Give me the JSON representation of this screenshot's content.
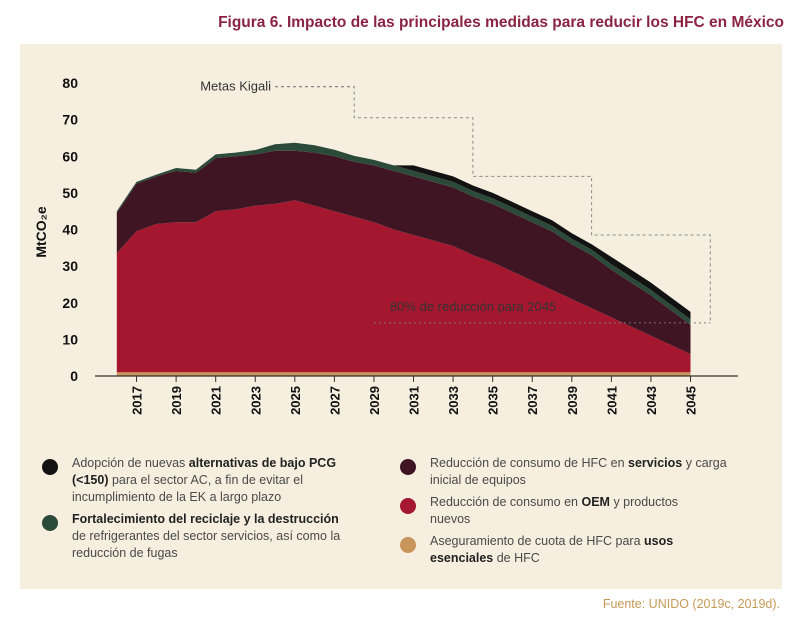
{
  "title": "Figura 6. Impacto de las principales medidas para reducir los HFC en México",
  "source": "Fuente: UNIDO (2019c, 2019d).",
  "legend": {
    "item1": {
      "pre": "Adopción de nuevas ",
      "bold": "alternativas de bajo PCG (<150)",
      "post": " para el sector AC, a fin de evitar el incumplimiento de la EK a largo plazo",
      "color": "#121212"
    },
    "item2": {
      "pre": "",
      "bold": "Fortalecimiento del reciclaje y la destrucción",
      "post": " de refrigerantes del sector servicios, así como la reducción de fugas",
      "color": "#2b4a3a"
    },
    "item3": {
      "pre": "Reducción de consumo de HFC en ",
      "bold": "servicios",
      "post": " y carga inicial de equipos",
      "color": "#3f1523"
    },
    "item4": {
      "pre": "Reducción de consumo en ",
      "bold": "OEM",
      "post": " y productos nuevos",
      "color": "#a4172f"
    },
    "item5": {
      "pre": "Aseguramiento de cuota de HFC para ",
      "bold": "usos esenciales",
      "post": " de HFC",
      "color": "#c8955a"
    }
  },
  "chart_data": {
    "type": "area",
    "ylabel": "MtCO₂e",
    "ylim": [
      0,
      80
    ],
    "yticks": [
      0,
      10,
      20,
      30,
      40,
      50,
      60,
      70,
      80
    ],
    "x": [
      2016,
      2017,
      2018,
      2019,
      2020,
      2021,
      2022,
      2023,
      2024,
      2025,
      2026,
      2027,
      2028,
      2029,
      2030,
      2031,
      2032,
      2033,
      2034,
      2035,
      2036,
      2037,
      2038,
      2039,
      2040,
      2041,
      2042,
      2043,
      2044,
      2045
    ],
    "xticks": [
      "2017",
      "2019",
      "2021",
      "2023",
      "2025",
      "2027",
      "2029",
      "2031",
      "2033",
      "2035",
      "2037",
      "2039",
      "2041",
      "2043",
      "2045"
    ],
    "series": [
      {
        "name": "Aseguramiento de cuota de HFC para usos esenciales de HFC",
        "color": "#c8955a",
        "values": [
          1,
          1,
          1,
          1,
          1,
          1,
          1,
          1,
          1,
          1,
          1,
          1,
          1,
          1,
          1,
          1,
          1,
          1,
          1,
          1,
          1,
          1,
          1,
          1,
          1,
          1,
          1,
          1,
          1,
          1
        ]
      },
      {
        "name": "Reducción de consumo en OEM y productos nuevos",
        "color": "#a4172f",
        "values": [
          32.5,
          38.5,
          40.5,
          41,
          41,
          44,
          44.5,
          45.5,
          46,
          47,
          45.5,
          44,
          42.5,
          41,
          39,
          37.5,
          36,
          34.5,
          32,
          30,
          27.5,
          25,
          22.5,
          20,
          17.5,
          15,
          12.5,
          10,
          7.5,
          5
        ]
      },
      {
        "name": "Reducción de consumo de HFC en servicios y carga inicial de equipos",
        "color": "#3f1523",
        "values": [
          11,
          13,
          13,
          14,
          13.5,
          14.5,
          14.5,
          14,
          14.5,
          13.5,
          14.5,
          15,
          15,
          15.5,
          16,
          16,
          16,
          16,
          16,
          16,
          16,
          16,
          16,
          15,
          14.5,
          13,
          12,
          11,
          9.5,
          8
        ]
      },
      {
        "name": "Fortalecimiento del reciclaje y la destrucción de refrigerantes del sector servicios, así como la reducción de fugas",
        "color": "#2b4a3a",
        "values": [
          0.5,
          0.5,
          0.5,
          0.8,
          0.8,
          1,
          1,
          1.2,
          1.8,
          2.2,
          2,
          1.8,
          1.6,
          1.5,
          1.5,
          1.5,
          1.5,
          1.5,
          1.5,
          1.5,
          1.5,
          1.5,
          1.5,
          1.5,
          1.5,
          1.5,
          1.5,
          1.5,
          1.5,
          1.5
        ]
      },
      {
        "name": "Adopción de nuevas alternativas de bajo PCG (<150) para el sector AC, a fin de evitar el incumplimiento de la EK a largo plazo",
        "color": "#121212",
        "values": [
          0,
          0,
          0,
          0,
          0,
          0,
          0,
          0,
          0,
          0,
          0,
          0,
          0,
          0,
          0,
          1.5,
          1.5,
          1.5,
          1.5,
          1.5,
          1.5,
          1.5,
          1.5,
          1.5,
          1.5,
          2,
          2,
          2,
          2,
          2
        ]
      }
    ],
    "kigali": {
      "label": "Metas Kigali",
      "steps": [
        [
          2016,
          79
        ],
        [
          2028,
          79
        ],
        [
          2028,
          70.5
        ],
        [
          2034,
          70.5
        ],
        [
          2034,
          54.5
        ],
        [
          2040,
          54.5
        ],
        [
          2040,
          38.5
        ],
        [
          2046,
          38.5
        ],
        [
          2046,
          14.5
        ]
      ]
    },
    "reduction_line": {
      "label": "80% de reducción para 2045",
      "y": 14.5,
      "x_start": 2029,
      "x_end": 2046
    }
  }
}
